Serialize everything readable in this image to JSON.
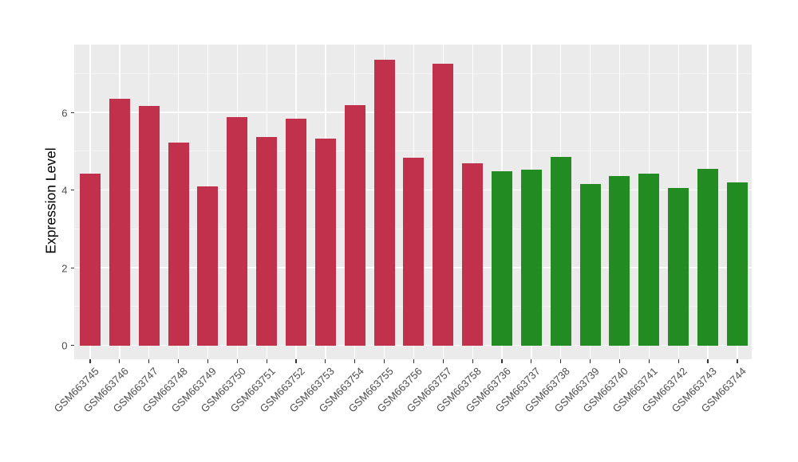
{
  "chart_data": {
    "type": "bar",
    "title": "",
    "xlabel": "",
    "ylabel": "Expression Level",
    "ylim": [
      -0.39,
      7.75
    ],
    "yticks": [
      0,
      2,
      4,
      6
    ],
    "ytick_labels": [
      "0",
      "2",
      "4",
      "6"
    ],
    "minor_gridlines": [
      1,
      3,
      5,
      7
    ],
    "grid": "white major and minor horizontal lines plus vertical line at each bar center on gray panel",
    "legend": "none",
    "panel_background": "#EBEBEB",
    "major_grid_color": "#FFFFFF",
    "minor_grid_color": "rgba(255,255,255,0.5)",
    "axis_text_color": "#4D4D4D",
    "axis_title_color": "#000000",
    "group_colors": {
      "red_group": "#C2314B",
      "green_group": "#228B22"
    },
    "bars": [
      {
        "label": "GSM663745",
        "value": 4.43,
        "group": "red_group"
      },
      {
        "label": "GSM663746",
        "value": 6.34,
        "group": "red_group"
      },
      {
        "label": "GSM663747",
        "value": 6.17,
        "group": "red_group"
      },
      {
        "label": "GSM663748",
        "value": 5.23,
        "group": "red_group"
      },
      {
        "label": "GSM663749",
        "value": 4.09,
        "group": "red_group"
      },
      {
        "label": "GSM663750",
        "value": 5.88,
        "group": "red_group"
      },
      {
        "label": "GSM663751",
        "value": 5.37,
        "group": "red_group"
      },
      {
        "label": "GSM663752",
        "value": 5.84,
        "group": "red_group"
      },
      {
        "label": "GSM663753",
        "value": 5.32,
        "group": "red_group"
      },
      {
        "label": "GSM663754",
        "value": 6.19,
        "group": "red_group"
      },
      {
        "label": "GSM663755",
        "value": 7.36,
        "group": "red_group"
      },
      {
        "label": "GSM663756",
        "value": 4.83,
        "group": "red_group"
      },
      {
        "label": "GSM663757",
        "value": 7.25,
        "group": "red_group"
      },
      {
        "label": "GSM663758",
        "value": 4.69,
        "group": "red_group"
      },
      {
        "label": "GSM663736",
        "value": 4.49,
        "group": "green_group"
      },
      {
        "label": "GSM663737",
        "value": 4.52,
        "group": "green_group"
      },
      {
        "label": "GSM663738",
        "value": 4.86,
        "group": "green_group"
      },
      {
        "label": "GSM663739",
        "value": 4.16,
        "group": "green_group"
      },
      {
        "label": "GSM663740",
        "value": 4.36,
        "group": "green_group"
      },
      {
        "label": "GSM663741",
        "value": 4.43,
        "group": "green_group"
      },
      {
        "label": "GSM663742",
        "value": 4.05,
        "group": "green_group"
      },
      {
        "label": "GSM663743",
        "value": 4.55,
        "group": "green_group"
      },
      {
        "label": "GSM663744",
        "value": 4.2,
        "group": "green_group"
      }
    ]
  }
}
